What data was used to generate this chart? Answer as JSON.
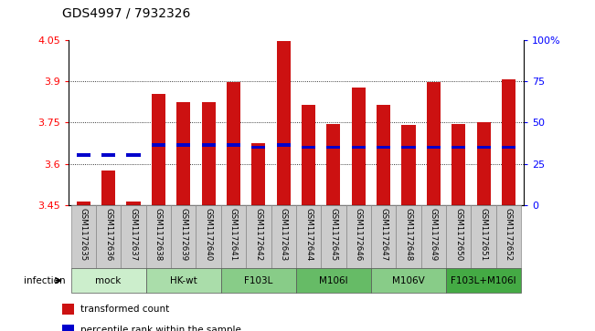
{
  "title": "GDS4997 / 7932326",
  "samples": [
    "GSM1172635",
    "GSM1172636",
    "GSM1172637",
    "GSM1172638",
    "GSM1172639",
    "GSM1172640",
    "GSM1172641",
    "GSM1172642",
    "GSM1172643",
    "GSM1172644",
    "GSM1172645",
    "GSM1172646",
    "GSM1172647",
    "GSM1172648",
    "GSM1172649",
    "GSM1172650",
    "GSM1172651",
    "GSM1172652"
  ],
  "bar_values": [
    3.465,
    3.575,
    3.465,
    3.855,
    3.825,
    3.825,
    3.895,
    3.675,
    4.045,
    3.815,
    3.745,
    3.875,
    3.815,
    3.74,
    3.895,
    3.745,
    3.75,
    3.905
  ],
  "percentile_values": [
    3.632,
    3.632,
    3.632,
    3.668,
    3.668,
    3.668,
    3.668,
    3.66,
    3.668,
    3.66,
    3.66,
    3.66,
    3.66,
    3.66,
    3.66,
    3.66,
    3.66,
    3.66
  ],
  "groups": [
    {
      "label": "mock",
      "start": 0,
      "end": 3,
      "color": "#cceecc"
    },
    {
      "label": "HK-wt",
      "start": 3,
      "end": 6,
      "color": "#bbddbb"
    },
    {
      "label": "F103L",
      "start": 6,
      "end": 9,
      "color": "#99cc99"
    },
    {
      "label": "M106I",
      "start": 9,
      "end": 12,
      "color": "#77bb77"
    },
    {
      "label": "M106V",
      "start": 12,
      "end": 15,
      "color": "#55cc55"
    },
    {
      "label": "F103L+M106I",
      "start": 15,
      "end": 18,
      "color": "#33aa33"
    }
  ],
  "ymin": 3.45,
  "ymax": 4.05,
  "yticks": [
    3.45,
    3.6,
    3.75,
    3.9,
    4.05
  ],
  "ytick_labels": [
    "3.45",
    "3.6",
    "3.75",
    "3.9",
    "4.05"
  ],
  "bar_color": "#cc1111",
  "percentile_color": "#0000cc",
  "bar_width": 0.55,
  "right_yticks": [
    0,
    25,
    50,
    75,
    100
  ],
  "right_ytick_labels": [
    "0",
    "25",
    "50",
    "75",
    "100%"
  ]
}
